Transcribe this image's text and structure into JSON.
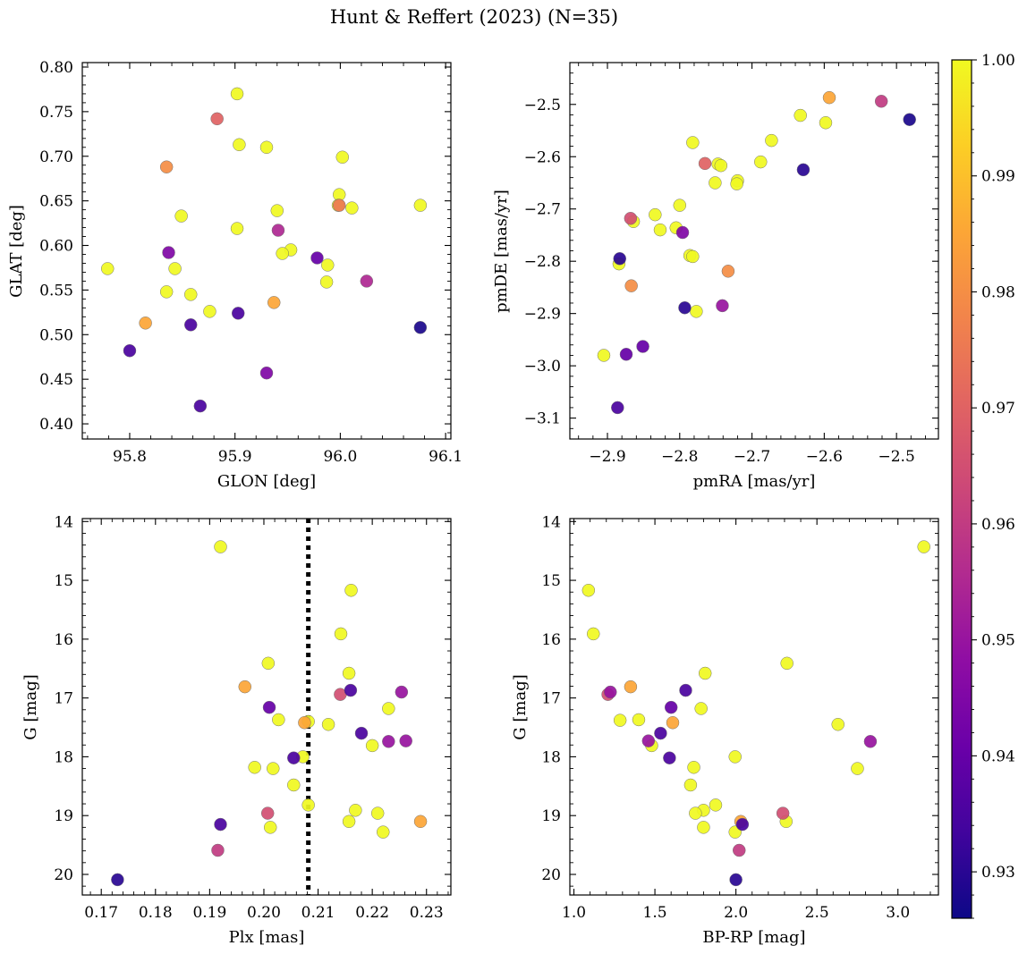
{
  "chart_data": {
    "title": "Hunt & Reffert (2023) (N=35)",
    "type": "scatter",
    "colorbar": {
      "cmap": "plasma",
      "range": [
        0.926,
        1.0
      ],
      "ticks": [
        0.93,
        0.94,
        0.95,
        0.96,
        0.97,
        0.98,
        0.99,
        1.0
      ],
      "tick_labels": [
        "0.93",
        "0.94",
        "0.95",
        "0.96",
        "0.97",
        "0.98",
        "0.99",
        "1.00"
      ]
    },
    "panels": [
      {
        "id": "glon-glat",
        "xlabel": "GLON [deg]",
        "ylabel": "GLAT [deg]",
        "xlim": [
          95.755,
          96.105
        ],
        "ylim": [
          0.383,
          0.805
        ],
        "invert_y": false,
        "xticks": [
          95.8,
          95.9,
          96.0,
          96.1
        ],
        "xtick_labels": [
          "95.8",
          "95.9",
          "96.0",
          "96.1"
        ],
        "yticks": [
          0.4,
          0.45,
          0.5,
          0.55,
          0.6,
          0.65,
          0.7,
          0.75,
          0.8
        ],
        "ytick_labels": [
          "0.40",
          "0.45",
          "0.50",
          "0.55",
          "0.60",
          "0.65",
          "0.70",
          "0.75",
          "0.80"
        ],
        "points": [
          {
            "x": 95.902,
            "y": 0.77,
            "c": 1.0
          },
          {
            "x": 95.883,
            "y": 0.742,
            "c": 0.97
          },
          {
            "x": 95.904,
            "y": 0.713,
            "c": 1.0
          },
          {
            "x": 95.93,
            "y": 0.71,
            "c": 1.0
          },
          {
            "x": 96.002,
            "y": 0.699,
            "c": 1.0
          },
          {
            "x": 95.835,
            "y": 0.688,
            "c": 0.98
          },
          {
            "x": 95.999,
            "y": 0.657,
            "c": 1.0
          },
          {
            "x": 95.999,
            "y": 0.645,
            "c": 0.975
          },
          {
            "x": 95.998,
            "y": 0.645,
            "c": 1.0
          },
          {
            "x": 96.011,
            "y": 0.642,
            "c": 1.0
          },
          {
            "x": 96.076,
            "y": 0.645,
            "c": 1.0
          },
          {
            "x": 95.94,
            "y": 0.639,
            "c": 1.0
          },
          {
            "x": 95.849,
            "y": 0.633,
            "c": 1.0
          },
          {
            "x": 95.902,
            "y": 0.619,
            "c": 1.0
          },
          {
            "x": 95.941,
            "y": 0.617,
            "c": 0.955
          },
          {
            "x": 95.953,
            "y": 0.595,
            "c": 1.0
          },
          {
            "x": 95.945,
            "y": 0.591,
            "c": 1.0
          },
          {
            "x": 95.837,
            "y": 0.592,
            "c": 0.945
          },
          {
            "x": 95.978,
            "y": 0.586,
            "c": 0.94
          },
          {
            "x": 95.988,
            "y": 0.578,
            "c": 1.0
          },
          {
            "x": 95.779,
            "y": 0.574,
            "c": 1.0
          },
          {
            "x": 95.843,
            "y": 0.574,
            "c": 1.0
          },
          {
            "x": 96.025,
            "y": 0.56,
            "c": 0.955
          },
          {
            "x": 95.987,
            "y": 0.559,
            "c": 1.0
          },
          {
            "x": 95.835,
            "y": 0.548,
            "c": 1.0
          },
          {
            "x": 95.858,
            "y": 0.545,
            "c": 1.0
          },
          {
            "x": 95.937,
            "y": 0.536,
            "c": 0.985
          },
          {
            "x": 95.876,
            "y": 0.526,
            "c": 1.0
          },
          {
            "x": 95.903,
            "y": 0.524,
            "c": 0.935
          },
          {
            "x": 95.815,
            "y": 0.513,
            "c": 0.985
          },
          {
            "x": 95.858,
            "y": 0.511,
            "c": 0.935
          },
          {
            "x": 96.076,
            "y": 0.508,
            "c": 0.928
          },
          {
            "x": 95.8,
            "y": 0.482,
            "c": 0.935
          },
          {
            "x": 95.93,
            "y": 0.457,
            "c": 0.945
          },
          {
            "x": 95.867,
            "y": 0.42,
            "c": 0.935
          }
        ]
      },
      {
        "id": "pmra-pmde",
        "xlabel": "pmRA [mas/yr]",
        "ylabel": "pmDE [mas/yr]",
        "xlim": [
          -2.952,
          -2.442
        ],
        "ylim": [
          -3.14,
          -2.42
        ],
        "invert_y": false,
        "xticks": [
          -2.9,
          -2.8,
          -2.7,
          -2.6,
          -2.5
        ],
        "xtick_labels": [
          "−2.9",
          "−2.8",
          "−2.7",
          "−2.6",
          "−2.5"
        ],
        "yticks": [
          -3.1,
          -3.0,
          -2.9,
          -2.8,
          -2.7,
          -2.6,
          -2.5
        ],
        "ytick_labels": [
          "−3.1",
          "−3.0",
          "−2.9",
          "−2.8",
          "−2.7",
          "−2.6",
          "−2.5"
        ],
        "points": [
          {
            "x": -2.593,
            "y": -2.487,
            "c": 0.985
          },
          {
            "x": -2.521,
            "y": -2.494,
            "c": 0.96
          },
          {
            "x": -2.482,
            "y": -2.529,
            "c": 0.928
          },
          {
            "x": -2.633,
            "y": -2.521,
            "c": 1.0
          },
          {
            "x": -2.598,
            "y": -2.535,
            "c": 1.0
          },
          {
            "x": -2.782,
            "y": -2.573,
            "c": 1.0
          },
          {
            "x": -2.673,
            "y": -2.569,
            "c": 1.0
          },
          {
            "x": -2.688,
            "y": -2.61,
            "c": 1.0
          },
          {
            "x": -2.765,
            "y": -2.613,
            "c": 0.97
          },
          {
            "x": -2.747,
            "y": -2.614,
            "c": 1.0
          },
          {
            "x": -2.743,
            "y": -2.617,
            "c": 1.0
          },
          {
            "x": -2.629,
            "y": -2.625,
            "c": 0.93
          },
          {
            "x": -2.72,
            "y": -2.646,
            "c": 1.0
          },
          {
            "x": -2.751,
            "y": -2.65,
            "c": 1.0
          },
          {
            "x": -2.721,
            "y": -2.652,
            "c": 1.0
          },
          {
            "x": -2.8,
            "y": -2.693,
            "c": 1.0
          },
          {
            "x": -2.834,
            "y": -2.711,
            "c": 1.0
          },
          {
            "x": -2.868,
            "y": -2.718,
            "c": 0.965
          },
          {
            "x": -2.864,
            "y": -2.724,
            "c": 1.0
          },
          {
            "x": -2.805,
            "y": -2.736,
            "c": 1.0
          },
          {
            "x": -2.827,
            "y": -2.74,
            "c": 1.0
          },
          {
            "x": -2.796,
            "y": -2.745,
            "c": 0.945
          },
          {
            "x": -2.786,
            "y": -2.789,
            "c": 1.0
          },
          {
            "x": -2.782,
            "y": -2.791,
            "c": 1.0
          },
          {
            "x": -2.883,
            "y": -2.795,
            "c": 0.93
          },
          {
            "x": -2.884,
            "y": -2.805,
            "c": 1.0
          },
          {
            "x": -2.733,
            "y": -2.819,
            "c": 0.98
          },
          {
            "x": -2.867,
            "y": -2.847,
            "c": 0.98
          },
          {
            "x": -2.741,
            "y": -2.885,
            "c": 0.95
          },
          {
            "x": -2.793,
            "y": -2.889,
            "c": 0.93
          },
          {
            "x": -2.777,
            "y": -2.896,
            "c": 1.0
          },
          {
            "x": -2.851,
            "y": -2.963,
            "c": 0.94
          },
          {
            "x": -2.905,
            "y": -2.98,
            "c": 1.0
          },
          {
            "x": -2.874,
            "y": -2.978,
            "c": 0.94
          },
          {
            "x": -2.886,
            "y": -3.08,
            "c": 0.935
          }
        ]
      },
      {
        "id": "plx-g",
        "xlabel": "Plx [mas]",
        "ylabel": "G [mag]",
        "xlim": [
          0.1665,
          0.2345
        ],
        "ylim": [
          20.35,
          13.95
        ],
        "invert_y": true,
        "vline": {
          "x": 0.2082,
          "style": "dotted",
          "color": "#000000"
        },
        "xticks": [
          0.17,
          0.18,
          0.19,
          0.2,
          0.21,
          0.22,
          0.23
        ],
        "xtick_labels": [
          "0.17",
          "0.18",
          "0.19",
          "0.20",
          "0.21",
          "0.22",
          "0.23"
        ],
        "yticks": [
          14,
          15,
          16,
          17,
          18,
          19,
          20
        ],
        "ytick_labels": [
          "14",
          "15",
          "16",
          "17",
          "18",
          "19",
          "20"
        ],
        "points": [
          {
            "x": 0.192,
            "y": 14.43,
            "c": 1.0
          },
          {
            "x": 0.2161,
            "y": 15.17,
            "c": 1.0
          },
          {
            "x": 0.2142,
            "y": 15.91,
            "c": 1.0
          },
          {
            "x": 0.2008,
            "y": 16.41,
            "c": 1.0
          },
          {
            "x": 0.2157,
            "y": 16.58,
            "c": 1.0
          },
          {
            "x": 0.1965,
            "y": 16.81,
            "c": 0.985
          },
          {
            "x": 0.216,
            "y": 16.87,
            "c": 0.935
          },
          {
            "x": 0.2254,
            "y": 16.9,
            "c": 0.95
          },
          {
            "x": 0.2141,
            "y": 16.94,
            "c": 0.965
          },
          {
            "x": 0.201,
            "y": 17.16,
            "c": 0.94
          },
          {
            "x": 0.223,
            "y": 17.18,
            "c": 1.0
          },
          {
            "x": 0.2027,
            "y": 17.37,
            "c": 1.0
          },
          {
            "x": 0.2075,
            "y": 17.42,
            "c": 0.985
          },
          {
            "x": 0.2082,
            "y": 17.4,
            "c": 1.0
          },
          {
            "x": 0.2119,
            "y": 17.45,
            "c": 1.0
          },
          {
            "x": 0.218,
            "y": 17.6,
            "c": 0.935
          },
          {
            "x": 0.223,
            "y": 17.74,
            "c": 0.95
          },
          {
            "x": 0.2262,
            "y": 17.73,
            "c": 0.95
          },
          {
            "x": 0.22,
            "y": 17.81,
            "c": 1.0
          },
          {
            "x": 0.2055,
            "y": 18.02,
            "c": 0.935
          },
          {
            "x": 0.2072,
            "y": 18.0,
            "c": 1.0
          },
          {
            "x": 0.1983,
            "y": 18.18,
            "c": 1.0
          },
          {
            "x": 0.2017,
            "y": 18.2,
            "c": 1.0
          },
          {
            "x": 0.2055,
            "y": 18.48,
            "c": 1.0
          },
          {
            "x": 0.2082,
            "y": 18.82,
            "c": 1.0
          },
          {
            "x": 0.2169,
            "y": 18.91,
            "c": 1.0
          },
          {
            "x": 0.221,
            "y": 18.96,
            "c": 1.0
          },
          {
            "x": 0.2007,
            "y": 18.96,
            "c": 0.965
          },
          {
            "x": 0.2289,
            "y": 19.1,
            "c": 0.985
          },
          {
            "x": 0.2157,
            "y": 19.1,
            "c": 1.0
          },
          {
            "x": 0.192,
            "y": 19.15,
            "c": 0.935
          },
          {
            "x": 0.2012,
            "y": 19.2,
            "c": 1.0
          },
          {
            "x": 0.222,
            "y": 19.28,
            "c": 1.0
          },
          {
            "x": 0.1915,
            "y": 19.59,
            "c": 0.96
          },
          {
            "x": 0.173,
            "y": 20.09,
            "c": 0.93
          }
        ]
      },
      {
        "id": "bprp-g",
        "xlabel": "BP-RP [mag]",
        "ylabel": "G [mag]",
        "xlim": [
          0.975,
          3.25
        ],
        "ylim": [
          20.35,
          13.95
        ],
        "invert_y": true,
        "xticks": [
          1.0,
          1.5,
          2.0,
          2.5,
          3.0
        ],
        "xtick_labels": [
          "1.0",
          "1.5",
          "2.0",
          "2.5",
          "3.0"
        ],
        "yticks": [
          14,
          15,
          16,
          17,
          18,
          19,
          20
        ],
        "ytick_labels": [
          "14",
          "15",
          "16",
          "17",
          "18",
          "19",
          "20"
        ],
        "points": [
          {
            "x": 3.16,
            "y": 14.43,
            "c": 1.0
          },
          {
            "x": 1.09,
            "y": 15.17,
            "c": 1.0
          },
          {
            "x": 1.12,
            "y": 15.91,
            "c": 1.0
          },
          {
            "x": 2.315,
            "y": 16.41,
            "c": 1.0
          },
          {
            "x": 1.81,
            "y": 16.58,
            "c": 1.0
          },
          {
            "x": 1.35,
            "y": 16.81,
            "c": 0.985
          },
          {
            "x": 1.69,
            "y": 16.87,
            "c": 0.935
          },
          {
            "x": 1.225,
            "y": 16.9,
            "c": 0.95
          },
          {
            "x": 1.21,
            "y": 16.94,
            "c": 0.965
          },
          {
            "x": 1.6,
            "y": 17.16,
            "c": 0.94
          },
          {
            "x": 1.785,
            "y": 17.18,
            "c": 1.0
          },
          {
            "x": 1.4,
            "y": 17.37,
            "c": 1.0
          },
          {
            "x": 1.285,
            "y": 17.38,
            "c": 1.0
          },
          {
            "x": 1.61,
            "y": 17.42,
            "c": 0.985
          },
          {
            "x": 2.63,
            "y": 17.45,
            "c": 1.0
          },
          {
            "x": 1.535,
            "y": 17.6,
            "c": 0.935
          },
          {
            "x": 2.83,
            "y": 17.74,
            "c": 0.95
          },
          {
            "x": 1.46,
            "y": 17.73,
            "c": 0.95
          },
          {
            "x": 1.48,
            "y": 17.81,
            "c": 1.0
          },
          {
            "x": 1.59,
            "y": 18.02,
            "c": 0.935
          },
          {
            "x": 1.995,
            "y": 18.0,
            "c": 1.0
          },
          {
            "x": 1.74,
            "y": 18.18,
            "c": 1.0
          },
          {
            "x": 2.75,
            "y": 18.2,
            "c": 1.0
          },
          {
            "x": 1.72,
            "y": 18.48,
            "c": 1.0
          },
          {
            "x": 1.875,
            "y": 18.82,
            "c": 1.0
          },
          {
            "x": 1.8,
            "y": 18.91,
            "c": 1.0
          },
          {
            "x": 1.75,
            "y": 18.96,
            "c": 1.0
          },
          {
            "x": 2.29,
            "y": 18.96,
            "c": 0.965
          },
          {
            "x": 2.03,
            "y": 19.1,
            "c": 0.985
          },
          {
            "x": 2.31,
            "y": 19.1,
            "c": 1.0
          },
          {
            "x": 2.04,
            "y": 19.15,
            "c": 0.935
          },
          {
            "x": 1.8,
            "y": 19.2,
            "c": 1.0
          },
          {
            "x": 1.995,
            "y": 19.28,
            "c": 1.0
          },
          {
            "x": 2.02,
            "y": 19.59,
            "c": 0.96
          },
          {
            "x": 2.0,
            "y": 20.09,
            "c": 0.93
          }
        ]
      }
    ]
  }
}
